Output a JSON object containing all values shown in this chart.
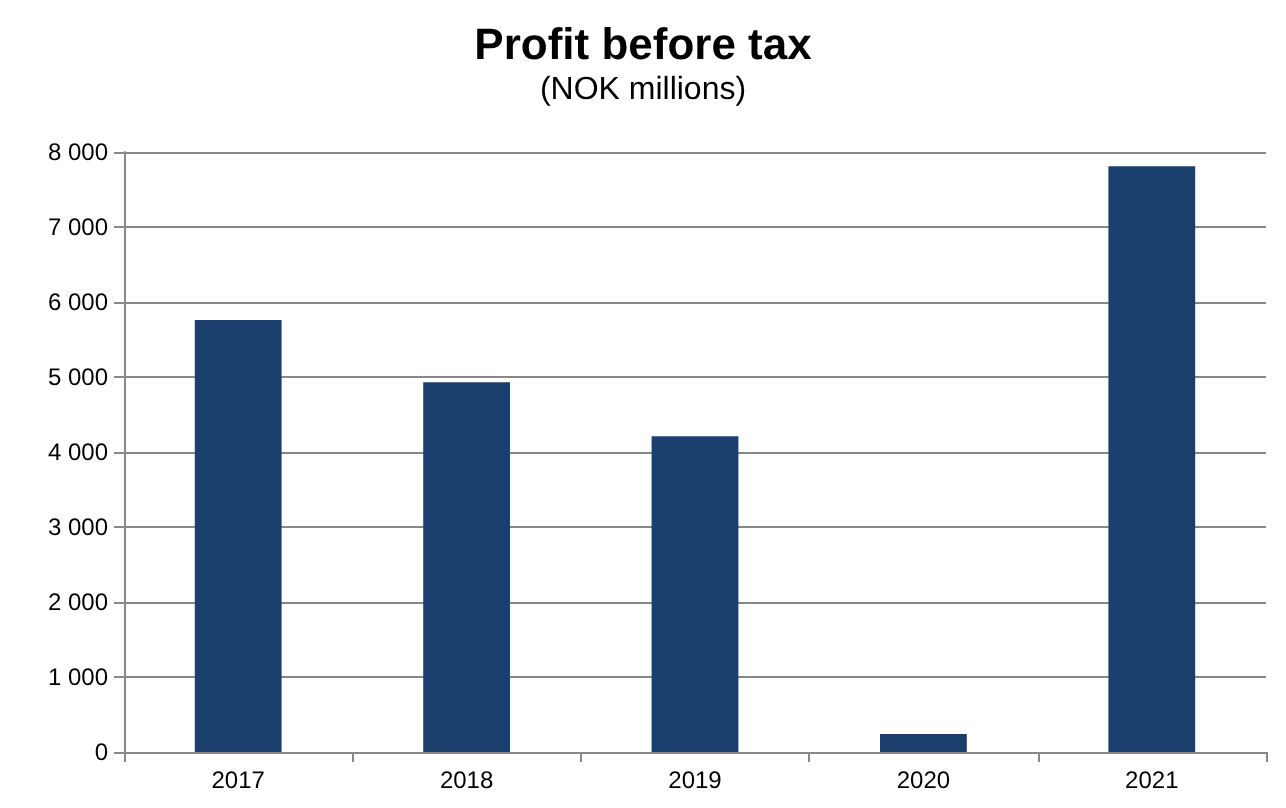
{
  "chart_data": {
    "type": "bar",
    "title": "Profit before tax",
    "subtitle": "(NOK millions)",
    "categories": [
      "2017",
      "2018",
      "2019",
      "2020",
      "2021"
    ],
    "values": [
      5760,
      4930,
      4210,
      240,
      7810
    ],
    "color": "#1b3f6c",
    "ylim": [
      0,
      8000
    ],
    "yticks": [
      0,
      {
        "value": 1000,
        "label": "1 000"
      },
      {
        "value": 2000,
        "label": "2 000"
      },
      {
        "value": 3000,
        "label": "3 000"
      },
      {
        "value": 4000,
        "label": "4 000"
      },
      {
        "value": 5000,
        "label": "5 000"
      },
      {
        "value": 6000,
        "label": "6 000"
      },
      {
        "value": 7000,
        "label": "7 000"
      },
      {
        "value": 8000,
        "label": "8 000"
      }
    ],
    "grid": "y"
  }
}
